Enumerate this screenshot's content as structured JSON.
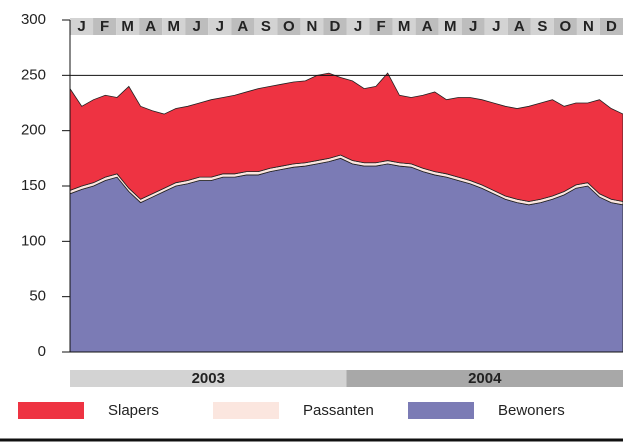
{
  "chart_data": {
    "type": "stacked-area",
    "categories": [
      "J",
      null,
      "F",
      null,
      "M",
      null,
      "A",
      null,
      "M",
      null,
      "J",
      null,
      "J",
      null,
      "A",
      null,
      "S",
      null,
      "O",
      null,
      "N",
      null,
      "D",
      null,
      "J",
      null,
      "F",
      null,
      "M",
      null,
      "A",
      null,
      "M",
      null,
      "J",
      null,
      "J",
      null,
      "A",
      null,
      "S",
      null,
      "O",
      null,
      "N",
      null,
      "D",
      null
    ],
    "years": [
      "2003",
      "2004"
    ],
    "series": [
      {
        "name": "Slapers",
        "color": "#ee3342",
        "values": [
          92,
          72,
          75,
          74,
          69,
          92,
          84,
          75,
          67,
          67,
          67,
          67,
          70,
          69,
          71,
          72,
          75,
          74,
          74,
          74,
          74,
          77,
          77,
          70,
          72,
          67,
          69,
          79,
          61,
          60,
          66,
          72,
          67,
          72,
          75,
          77,
          79,
          81,
          82,
          86,
          87,
          87,
          77,
          74,
          72,
          85,
          82,
          79
        ]
      },
      {
        "name": "Passanten",
        "color": "#fbe6df",
        "values": [
          3,
          3,
          3,
          3,
          3,
          3,
          3,
          3,
          3,
          3,
          3,
          3,
          3,
          3,
          3,
          3,
          3,
          3,
          3,
          3,
          3,
          3,
          3,
          3,
          3,
          3,
          3,
          3,
          3,
          3,
          3,
          3,
          3,
          3,
          3,
          3,
          3,
          3,
          3,
          3,
          3,
          3,
          3,
          3,
          3,
          3,
          3,
          3
        ]
      },
      {
        "name": "Bewoners",
        "color": "#7b7bb5",
        "values": [
          143,
          147,
          150,
          155,
          158,
          145,
          135,
          140,
          145,
          150,
          152,
          155,
          155,
          158,
          158,
          160,
          160,
          163,
          165,
          167,
          168,
          170,
          172,
          175,
          170,
          168,
          168,
          170,
          168,
          167,
          163,
          160,
          158,
          155,
          152,
          148,
          143,
          138,
          135,
          133,
          135,
          138,
          142,
          148,
          150,
          140,
          135,
          133
        ]
      }
    ],
    "ylim": [
      0,
      300
    ],
    "yticks": [
      0,
      50,
      100,
      150,
      200,
      250,
      300
    ]
  }
}
